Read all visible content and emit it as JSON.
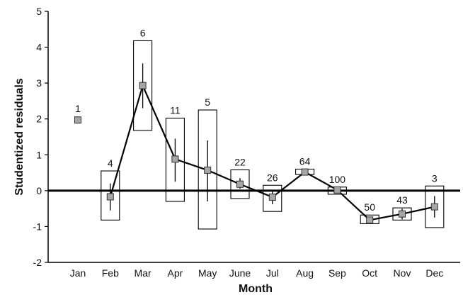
{
  "chart_data": {
    "type": "box",
    "title": "",
    "xlabel": "Month",
    "ylabel": "Studentized residuals",
    "ylim": [
      -2,
      5
    ],
    "yticks": [
      "-2",
      "-1",
      "0",
      "1",
      "2",
      "3",
      "4",
      "5"
    ],
    "categories": [
      "Jan",
      "Feb",
      "Mar",
      "Apr",
      "May",
      "June",
      "Jul",
      "Aug",
      "Sep",
      "Oct",
      "Nov",
      "Dec"
    ],
    "series": [
      {
        "means": [
          1.97,
          -0.17,
          2.93,
          0.88,
          0.57,
          0.18,
          -0.18,
          0.52,
          0.02,
          -0.82,
          -0.65,
          -0.45
        ],
        "box_low": [
          null,
          -0.82,
          1.68,
          -0.3,
          -1.07,
          -0.22,
          -0.58,
          0.45,
          -0.1,
          -0.92,
          -0.82,
          -1.03
        ],
        "box_high": [
          null,
          0.55,
          4.18,
          2.02,
          2.25,
          0.58,
          0.15,
          0.6,
          0.1,
          -0.68,
          -0.48,
          0.13
        ],
        "whisker_low": [
          null,
          -0.55,
          2.3,
          0.25,
          -0.3,
          0.05,
          -0.38,
          0.5,
          -0.05,
          -0.88,
          -0.8,
          -0.75
        ],
        "whisker_high": [
          null,
          0.2,
          3.55,
          1.45,
          1.4,
          0.35,
          0.0,
          0.55,
          0.07,
          -0.75,
          -0.5,
          -0.15
        ]
      }
    ],
    "n_labels": [
      "1",
      "4",
      "6",
      "11",
      "5",
      "22",
      "26",
      "64",
      "100",
      "50",
      "43",
      "3"
    ],
    "grid": false,
    "legend": "none"
  }
}
